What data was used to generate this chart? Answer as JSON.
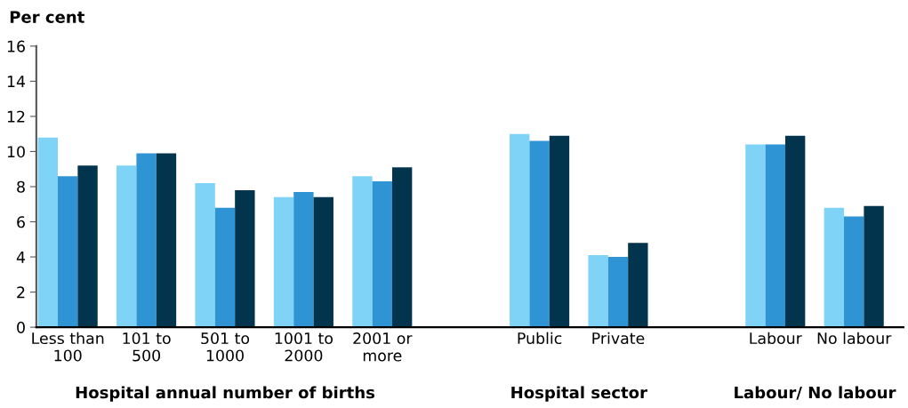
{
  "chart_data": {
    "type": "bar",
    "ylabel": "Per cent",
    "categories": [
      "Less than\n100",
      "101 to\n500",
      "501 to\n1000",
      "1001 to\n2000",
      "2001 or\nmore",
      null,
      "Public",
      "Private",
      null,
      "Labour",
      "No labour"
    ],
    "series": [
      {
        "color": "#7fd3f7",
        "values": [
          10.8,
          9.2,
          8.2,
          7.4,
          8.6,
          null,
          11.0,
          4.1,
          null,
          10.4,
          6.8
        ]
      },
      {
        "color": "#2e94d3",
        "values": [
          8.6,
          9.9,
          6.8,
          7.7,
          8.3,
          null,
          10.6,
          4.0,
          null,
          10.4,
          6.3
        ]
      },
      {
        "color": "#02344d",
        "values": [
          9.2,
          9.9,
          7.8,
          7.4,
          9.1,
          null,
          10.9,
          4.8,
          null,
          10.9,
          6.9
        ]
      }
    ],
    "annotations": [
      "Hospital annual number of births",
      "Hospital sector",
      "Labour/ No labour"
    ],
    "ylim": [
      0,
      16
    ],
    "yticks": [
      0,
      2,
      4,
      6,
      8,
      10,
      12,
      14,
      16
    ],
    "grid": false,
    "legend": false
  }
}
